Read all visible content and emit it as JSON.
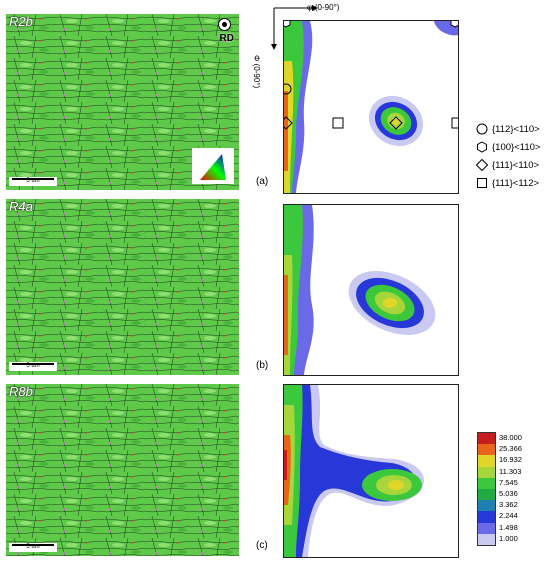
{
  "panels": [
    {
      "sample": "R2b",
      "letter": "(a)",
      "scale_text": "5 um"
    },
    {
      "sample": "R4a",
      "letter": "(b)",
      "scale_text": "5 um"
    },
    {
      "sample": "R8b",
      "letter": "(c)",
      "scale_text": "5 um"
    }
  ],
  "rd_label": "RD",
  "odf_axes": {
    "phi1": "φ₁(0-90°)",
    "Phi": "Φ (0-90°)"
  },
  "legend": [
    {
      "symbol": "circle-icon",
      "text": "{112}<110>"
    },
    {
      "symbol": "hexagon-icon",
      "text": "{100}<110>"
    },
    {
      "symbol": "diamond-icon",
      "text": "{111}<110>"
    },
    {
      "symbol": "square-icon",
      "text": "{111}<112>"
    }
  ],
  "colorbar": {
    "values": [
      "38.000",
      "25.366",
      "16.932",
      "11.303",
      "7.545",
      "5.036",
      "3.362",
      "2.244",
      "1.498",
      "1.000"
    ],
    "colors": [
      "#c41e1e",
      "#e8661a",
      "#e0d62a",
      "#a6d63a",
      "#3cc83c",
      "#22aa44",
      "#1f7fb0",
      "#2838d8",
      "#6a6ae8",
      "#c9c9f2"
    ]
  }
}
